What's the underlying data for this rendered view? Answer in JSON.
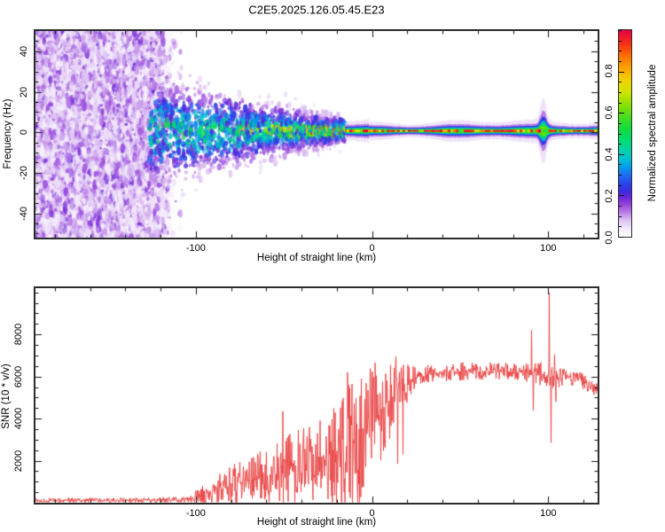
{
  "title": "C2E5.2025.126.05.45.E23",
  "colors": {
    "background": "#ffffff",
    "frame": "#2b2b2b",
    "tick": "#111111",
    "text": "#000000",
    "snr_line": "#e93f3f"
  },
  "chart_data": [
    {
      "type": "heatmap",
      "panel": "top",
      "title": "C2E5.2025.126.05.45.E23",
      "xlabel": "Height of straight line (km)",
      "ylabel": "Frequency (Hz)",
      "colorbar_label": "Normalized spectral amplitude",
      "xlim": [
        -191,
        128
      ],
      "ylim": [
        -52,
        50
      ],
      "xticks": [
        -100,
        0,
        100
      ],
      "xtick_labels": [
        "-100",
        "0",
        "100"
      ],
      "xtick_minor_step": 20,
      "yticks": [
        40,
        20,
        0,
        -20,
        -40
      ],
      "ytick_labels": [
        "40",
        "20",
        "0",
        "-20",
        "-40"
      ],
      "ytick_minor_step": 5,
      "grid": false,
      "colorbar_range": [
        0,
        1
      ],
      "colorbar_ticks": [
        0,
        0.2,
        0.4,
        0.6,
        0.8
      ],
      "colorbar_tick_labels": [
        "0.0",
        "0.2",
        "0.4",
        "0.6",
        "0.8"
      ],
      "colorbar_minor_step": 0.05,
      "colormap_stops": [
        [
          0.0,
          "#ffffff"
        ],
        [
          0.04,
          "#f3e8fb"
        ],
        [
          0.08,
          "#dcc0f2"
        ],
        [
          0.12,
          "#b77ae6"
        ],
        [
          0.16,
          "#9340dc"
        ],
        [
          0.19,
          "#6a28d8"
        ],
        [
          0.22,
          "#3c2ae0"
        ],
        [
          0.26,
          "#2847e8"
        ],
        [
          0.3,
          "#1e6ef0"
        ],
        [
          0.34,
          "#00a0ea"
        ],
        [
          0.38,
          "#00c3cf"
        ],
        [
          0.42,
          "#00d3a8"
        ],
        [
          0.46,
          "#00dc78"
        ],
        [
          0.52,
          "#10dc40"
        ],
        [
          0.58,
          "#46de1e"
        ],
        [
          0.64,
          "#8ce000"
        ],
        [
          0.7,
          "#cfe400"
        ],
        [
          0.76,
          "#f4d000"
        ],
        [
          0.82,
          "#fba000"
        ],
        [
          0.88,
          "#fc6a00"
        ],
        [
          0.93,
          "#f53312"
        ],
        [
          0.97,
          "#ee1430"
        ],
        [
          1.0,
          "#e60040"
        ]
      ],
      "structure": {
        "description": "Broadband low-amplitude purple speckle noise fills all frequencies below about -120 km; a meteor echo band centered near +0.7 Hz emerges at ~-120 km and narrows from about ±28 Hz to ±6 Hz by -15 km; above -15 km a narrow high-amplitude stripe (red core with green/cyan/blue/purple halo) runs to the right edge, with a brief broadening disturbance near +97 km.",
        "noise_end_km": -120,
        "funnel_end_km": -15,
        "sigma_start_hz": 28,
        "sigma_end_hz": 6.5,
        "center_hz": 0.7,
        "stripe_halo_hz": 4.5,
        "core_hz": 1.0,
        "bulge_km": 97
      }
    },
    {
      "type": "line",
      "panel": "bottom",
      "xlabel": "Height of straight line (km)",
      "ylabel": "SNR (10 * v/v)",
      "xlim": [
        -191,
        128
      ],
      "ylim": [
        0,
        10200
      ],
      "xticks": [
        -100,
        0,
        100
      ],
      "xtick_labels": [
        "-100",
        "0",
        "100"
      ],
      "xtick_minor_step": 20,
      "yticks": [
        2000,
        4000,
        6000,
        8000
      ],
      "ytick_labels": [
        "2000",
        "4000",
        "6000",
        "8000"
      ],
      "ytick_minor_step": 500,
      "grid": false,
      "series": [
        {
          "name": "SNR",
          "color": "#e93f3f",
          "envelope_format": [
            "height_km",
            "mean_snr",
            "noise_amplitude"
          ],
          "envelope": [
            [
              -191,
              110,
              80
            ],
            [
              -160,
              115,
              85
            ],
            [
              -130,
              120,
              90
            ],
            [
              -108,
              130,
              100
            ],
            [
              -103,
              170,
              150
            ],
            [
              -99,
              280,
              240
            ],
            [
              -95,
              400,
              340
            ],
            [
              -91,
              520,
              430
            ],
            [
              -87,
              640,
              520
            ],
            [
              -83,
              760,
              600
            ],
            [
              -79,
              880,
              680
            ],
            [
              -75,
              1000,
              760
            ],
            [
              -70,
              1100,
              820
            ],
            [
              -65,
              1200,
              880
            ],
            [
              -60,
              1300,
              940
            ],
            [
              -55,
              1400,
              1000
            ],
            [
              -50,
              1500,
              1100
            ],
            [
              -45,
              1600,
              1150
            ],
            [
              -40,
              1700,
              1250
            ],
            [
              -35,
              1800,
              1300
            ],
            [
              -30,
              1900,
              1400
            ],
            [
              -25,
              2050,
              1550
            ],
            [
              -20,
              2250,
              1750
            ],
            [
              -16,
              2450,
              1900
            ],
            [
              -12,
              2700,
              2050
            ],
            [
              -8,
              3000,
              2100
            ],
            [
              -4,
              3350,
              2050
            ],
            [
              0,
              3750,
              1950
            ],
            [
              4,
              4200,
              1750
            ],
            [
              8,
              4650,
              1500
            ],
            [
              12,
              5050,
              1250
            ],
            [
              16,
              5400,
              950
            ],
            [
              20,
              5700,
              650
            ],
            [
              24,
              5900,
              450
            ],
            [
              28,
              6020,
              340
            ],
            [
              34,
              6120,
              300
            ],
            [
              45,
              6230,
              290
            ],
            [
              55,
              6280,
              290
            ],
            [
              65,
              6260,
              280
            ],
            [
              75,
              6230,
              280
            ],
            [
              85,
              6220,
              290
            ],
            [
              90,
              6230,
              330
            ],
            [
              94,
              6150,
              380
            ],
            [
              98,
              6050,
              420
            ],
            [
              102,
              5950,
              400
            ],
            [
              106,
              5900,
              320
            ],
            [
              110,
              5980,
              280
            ],
            [
              114,
              5950,
              260
            ],
            [
              118,
              5850,
              250
            ],
            [
              122,
              5650,
              240
            ],
            [
              126,
              5450,
              230
            ],
            [
              128,
              5380,
              230
            ]
          ],
          "spikes_format": [
            "height_km",
            "snr_value"
          ],
          "spikes": [
            {
              "km": -50.5,
              "v": 4350
            },
            {
              "km": -31,
              "v": 3300
            },
            {
              "km": -14,
              "v": 6200
            },
            {
              "km": -13,
              "v": 500
            },
            {
              "km": -6,
              "v": 5900
            },
            {
              "km": -5,
              "v": 900
            },
            {
              "km": 13.5,
              "v": 6950
            },
            {
              "km": 14.5,
              "v": 1850
            },
            {
              "km": 17.5,
              "v": 2300
            },
            {
              "km": 90.5,
              "v": 8200
            },
            {
              "km": 91.5,
              "v": 4400
            },
            {
              "km": 100.5,
              "v": 9980
            },
            {
              "km": 101.5,
              "v": 2850
            },
            {
              "km": 103.5,
              "v": 7050
            },
            {
              "km": 104.3,
              "v": 4800
            }
          ]
        }
      ]
    }
  ]
}
